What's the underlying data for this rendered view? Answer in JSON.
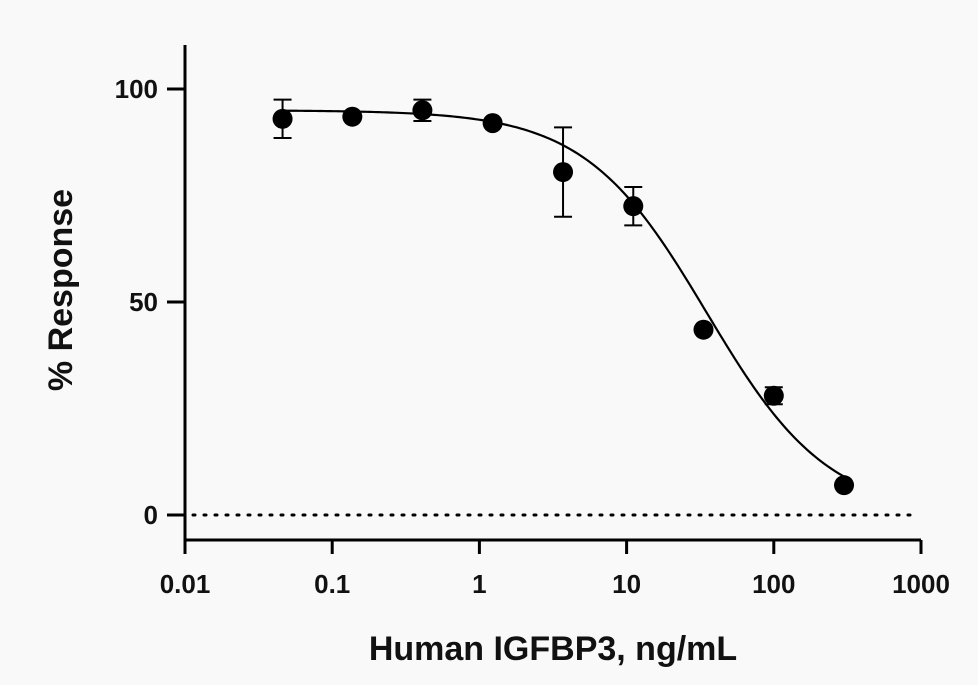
{
  "chart_data": {
    "type": "scatter",
    "xscale": "log",
    "xlabel": "Human IGFBP3, ng/mL",
    "ylabel": "% Response",
    "xlim": [
      0.01,
      1000
    ],
    "ylim": [
      -5,
      110
    ],
    "x_ticks": [
      0.01,
      0.1,
      1,
      10,
      100,
      1000
    ],
    "x_tick_labels": [
      "0.01",
      "0.1",
      "1",
      "10",
      "100",
      "1000"
    ],
    "y_ticks": [
      0,
      50,
      100
    ],
    "y_tick_labels": [
      "0",
      "50",
      "100"
    ],
    "reference_line": {
      "y": 0,
      "style": "dotted"
    },
    "grid": false,
    "legend": "none",
    "series": [
      {
        "x": [
          0.046,
          0.137,
          0.41,
          1.23,
          3.7,
          11.1,
          33.3,
          100,
          300
        ],
        "y": [
          93,
          93.5,
          95,
          92,
          80.5,
          72.5,
          43.5,
          28,
          7
        ],
        "error": [
          4.5,
          0,
          2.5,
          0,
          10.5,
          4.5,
          0,
          2,
          0
        ]
      }
    ],
    "fit_curve": {
      "model": "4PL",
      "top": 95,
      "bottom": 0,
      "ic50": 35,
      "hill": 1.05
    },
    "colors": {
      "marker": "#000000",
      "line": "#000000",
      "background": "#f9f9f9"
    }
  }
}
